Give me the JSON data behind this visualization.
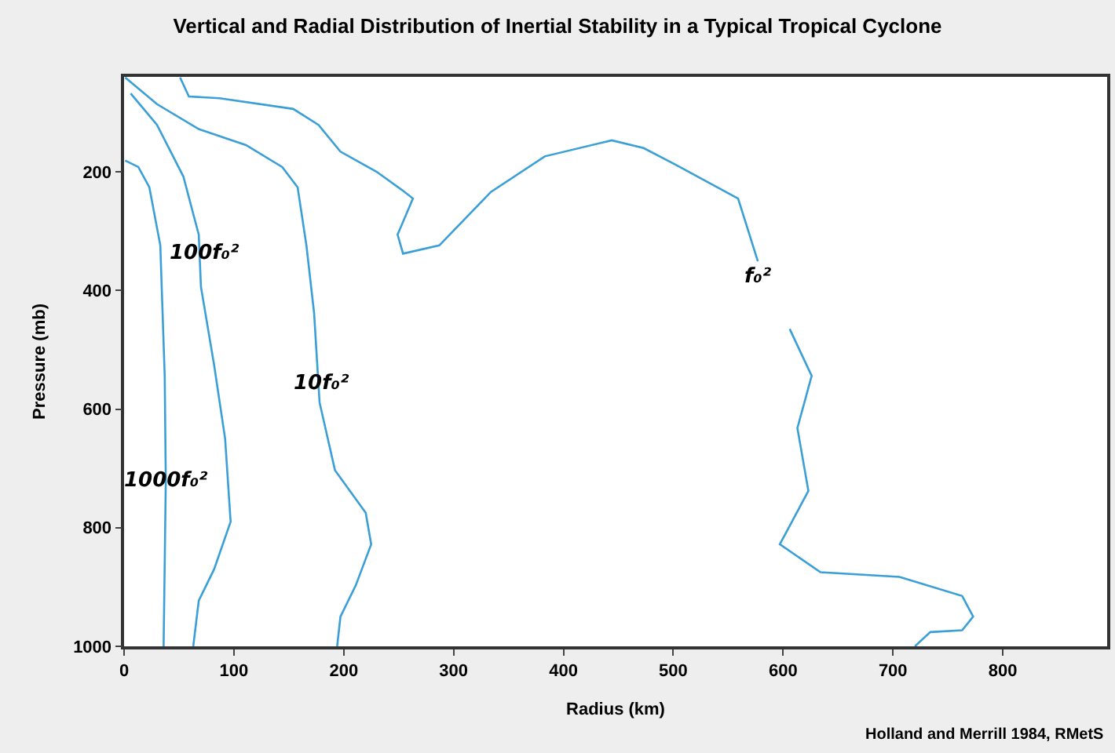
{
  "chart_data": {
    "type": "line",
    "title": "Vertical and Radial Distribution of Inertial Stability in a Typical Tropical Cyclone",
    "xlabel": "Radius (km)",
    "ylabel": "Pressure (mb)",
    "xlim": [
      0,
      895
    ],
    "xticks": [
      0,
      100,
      200,
      300,
      400,
      500,
      600,
      700,
      800
    ],
    "ylim": [
      1000,
      40
    ],
    "yticks": [
      200,
      400,
      600,
      800,
      1000
    ],
    "marker": "none",
    "line_style": "solid",
    "series": [
      {
        "color": "#3a9fd6",
        "x": [
          1,
          13,
          23,
          33,
          37,
          38,
          36
        ],
        "values": [
          181,
          192,
          226,
          324,
          544,
          721,
          1000
        ]
      },
      {
        "color": "#3a9fd6",
        "x": [
          6,
          30,
          54,
          68,
          70,
          82,
          92,
          97,
          82,
          68,
          63
        ],
        "values": [
          68,
          121,
          208,
          306,
          394,
          526,
          650,
          790,
          870,
          923,
          1000
        ]
      },
      {
        "color": "#3a9fd6",
        "x": [
          1,
          30,
          68,
          111,
          144,
          158,
          166,
          173,
          178,
          192,
          220,
          225,
          211,
          197,
          194
        ],
        "values": [
          41,
          86,
          128,
          155,
          192,
          226,
          324,
          438,
          589,
          703,
          775,
          828,
          897,
          950,
          1000
        ]
      },
      {
        "color": "#3a9fd6",
        "x": [
          51,
          59,
          87,
          154,
          177,
          197,
          230,
          254,
          263,
          249,
          254,
          287,
          334,
          383,
          444,
          473,
          501,
          559,
          577,
          590,
          606,
          626,
          613,
          623,
          597,
          634,
          706,
          763,
          773,
          763,
          734,
          720
        ],
        "values": [
          41,
          73,
          76,
          94,
          121,
          166,
          200,
          232,
          245,
          306,
          338,
          324,
          234,
          174,
          147,
          160,
          187,
          245,
          351,
          null,
          465,
          544,
          632,
          738,
          828,
          875,
          883,
          915,
          950,
          973,
          976,
          1000
        ]
      }
    ],
    "annotations": [
      {
        "text": "100f₀²",
        "x": 73,
        "y": 338
      },
      {
        "text": "10f₀²",
        "x": 180,
        "y": 557
      },
      {
        "text": "1000f₀²",
        "x": 38,
        "y": 721
      },
      {
        "text": "f₀²",
        "x": 577,
        "y": 351
      },
      "Holland and Merrill 1984, RMetS"
    ]
  }
}
